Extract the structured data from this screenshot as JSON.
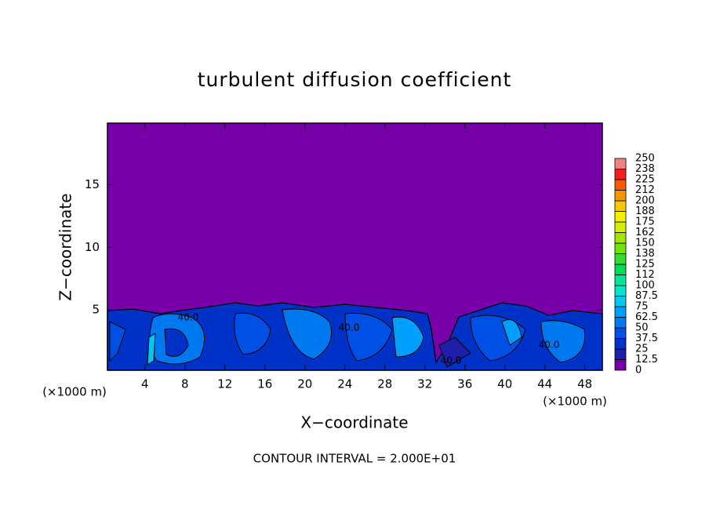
{
  "chart_data": {
    "type": "contour",
    "title": "turbulent diffusion coefficient",
    "xlabel": "X−coordinate",
    "ylabel": "Z−coordinate",
    "x_unit": "(×1000 m)",
    "x_unit_right": "(×1000 m)",
    "footer": "CONTOUR INTERVAL = 2.000E+01",
    "annotations": [
      "40.0",
      "40.0",
      "40.0",
      "40.0"
    ],
    "xlim": [
      0.25,
      49.75
    ],
    "xticks": [
      4,
      8,
      12,
      16,
      20,
      24,
      28,
      32,
      36,
      40,
      44,
      48
    ],
    "ylim": [
      0.2,
      19.9
    ],
    "yticks": [
      5,
      10,
      15
    ],
    "background_color": "#7800a8",
    "colorbar": {
      "levels": [
        0,
        12.5,
        25,
        37.5,
        50,
        62.5,
        75,
        87.5,
        100,
        112,
        125,
        138,
        150,
        162,
        175,
        188,
        200,
        212,
        225,
        238,
        250
      ],
      "colors": [
        "#7800a8",
        "#1e1ea8",
        "#0032c8",
        "#0050e6",
        "#0078f0",
        "#00a0ff",
        "#00c8f0",
        "#00e6c8",
        "#00e696",
        "#00dc5a",
        "#32dc32",
        "#6ee600",
        "#a0e600",
        "#d2f000",
        "#f5f000",
        "#f5c800",
        "#f59600",
        "#f55a00",
        "#f01e1e",
        "#f08282"
      ]
    }
  }
}
